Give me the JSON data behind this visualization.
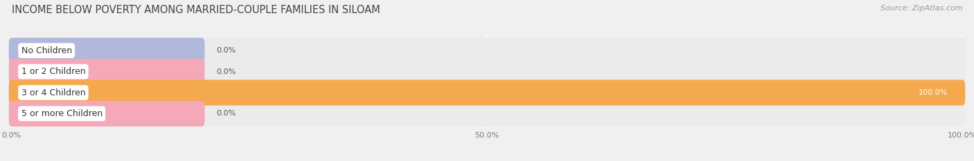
{
  "title": "INCOME BELOW POVERTY AMONG MARRIED-COUPLE FAMILIES IN SILOAM",
  "source": "Source: ZipAtlas.com",
  "categories": [
    "No Children",
    "1 or 2 Children",
    "3 or 4 Children",
    "5 or more Children"
  ],
  "values": [
    0.0,
    0.0,
    100.0,
    0.0
  ],
  "bar_colors": [
    "#b0b8dc",
    "#f4a8b8",
    "#f5a94e",
    "#f4a8b8"
  ],
  "bg_color": "#f0f0f0",
  "bar_bg_color": "#e0e0e0",
  "bar_bg_color2": "#ebebeb",
  "xlim": [
    0,
    100
  ],
  "xtick_labels": [
    "0.0%",
    "50.0%",
    "100.0%"
  ],
  "bar_height": 0.62,
  "title_fontsize": 10.5,
  "label_fontsize": 9,
  "value_fontsize": 8,
  "source_fontsize": 8,
  "stub_pct": 20.0
}
